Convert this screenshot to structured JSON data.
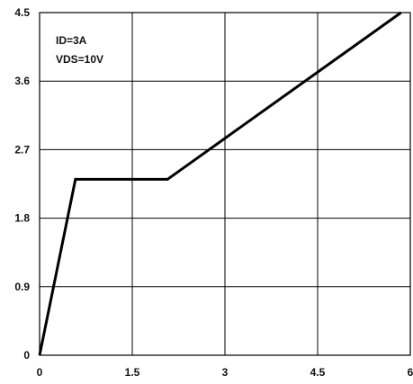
{
  "chart_data": {
    "type": "line",
    "title": "",
    "xlabel": "",
    "ylabel": "",
    "xlim": [
      0,
      6
    ],
    "ylim": [
      0,
      4.5
    ],
    "grid": true,
    "x_ticks": [
      "0",
      "1.5",
      "3",
      "4.5",
      "6"
    ],
    "y_ticks": [
      "0",
      "0.9",
      "1.8",
      "2.7",
      "3.6",
      "4.5"
    ],
    "annotations": [
      "ID=3A",
      "VDS=10V"
    ],
    "series": [
      {
        "color": "#000000",
        "x": [
          0,
          0.58,
          2.07,
          5.85
        ],
        "y": [
          0,
          2.31,
          2.31,
          4.5
        ]
      }
    ]
  }
}
